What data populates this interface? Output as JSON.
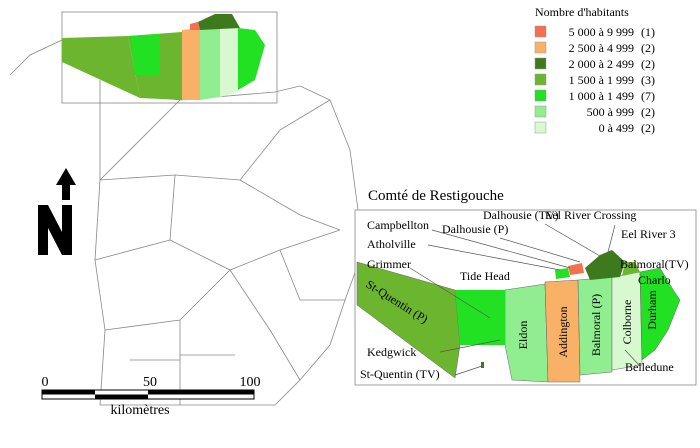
{
  "legend": {
    "title": "Nombre d'habitants",
    "items": [
      {
        "range": "5 000 à 9 999",
        "count": "(1)",
        "color": "#f4704f"
      },
      {
        "range": "2 500 à 4 999",
        "count": "(2)",
        "color": "#f9b168"
      },
      {
        "range": "2 000 à 2 499",
        "count": "(2)",
        "color": "#3d7a1e"
      },
      {
        "range": "1 500 à 1 999",
        "count": "(3)",
        "color": "#6cb52e"
      },
      {
        "range": "1 000 à 1 499",
        "count": "(7)",
        "color": "#22e022"
      },
      {
        "range": "500 à   999",
        "count": "(2)",
        "color": "#90ee90"
      },
      {
        "range": "0 à   499",
        "count": "(2)",
        "color": "#d8f8d0"
      }
    ]
  },
  "inset": {
    "title": "Comté de Restigouche",
    "regions": [
      {
        "label": "St-Quentin (P)",
        "color": "#6cb52e"
      },
      {
        "label": "Eldon",
        "color": "#90ee90"
      },
      {
        "label": "Addington",
        "color": "#f9b168"
      },
      {
        "label": "Balmoral (P)",
        "color": "#90ee90"
      },
      {
        "label": "Colborne",
        "color": "#d8f8d0"
      },
      {
        "label": "Durham",
        "color": "#22e022"
      }
    ],
    "places": [
      "Campbellton",
      "Dalhousie (P)",
      "Dalhousie (TV)",
      "Eel River Crossing",
      "Eel River 3",
      "Atholville",
      "Grimmer",
      "Tide Head",
      "Balmoral(TV)",
      "Charlo",
      "Kedgwick",
      "St-Quentin (TV)",
      "Belledune"
    ]
  },
  "scale": {
    "ticks": [
      "0",
      "50",
      "100"
    ],
    "unit": "kilomètres"
  }
}
